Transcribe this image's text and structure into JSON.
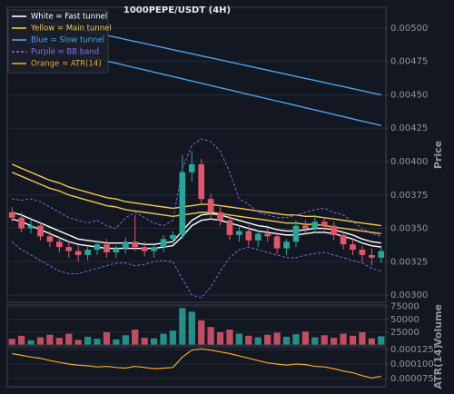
{
  "chart_data": [
    {
      "type": "candlestick",
      "title": "1000PEPE/USDT (4H)",
      "ylabel": "Price",
      "categories": [
        null,
        null,
        null,
        null,
        null,
        null,
        null,
        null,
        null,
        null,
        null,
        null,
        null,
        null,
        null,
        null,
        null,
        null,
        null,
        null,
        null,
        null,
        null,
        null,
        null,
        null,
        null,
        null,
        null,
        null,
        null,
        null,
        null,
        null,
        null,
        null,
        null,
        null,
        null,
        null
      ],
      "up_color": "#26a69a",
      "down_color": "#e0576b",
      "grid": true,
      "ylim": [
        0.002946,
        0.005156
      ],
      "yticks": [
        {
          "value": 0.003,
          "label": "0.00300"
        },
        {
          "value": 0.00325,
          "label": "0.00325"
        },
        {
          "value": 0.0035,
          "label": "0.00350"
        },
        {
          "value": 0.00375,
          "label": "0.00375"
        },
        {
          "value": 0.004,
          "label": "0.00400"
        },
        {
          "value": 0.00425,
          "label": "0.00425"
        },
        {
          "value": 0.0045,
          "label": "0.00450"
        },
        {
          "value": 0.00475,
          "label": "0.00475"
        },
        {
          "value": 0.005,
          "label": "0.00500"
        }
      ],
      "open": [
        0.00362,
        0.00358,
        0.0035,
        0.00352,
        0.00344,
        0.0034,
        0.00336,
        0.00333,
        0.0033,
        0.00334,
        0.00338,
        0.00332,
        0.00335,
        0.0034,
        0.00336,
        0.00333,
        0.00336,
        0.00342,
        0.00345,
        0.00392,
        0.00398,
        0.00372,
        0.00362,
        0.00356,
        0.00345,
        0.00348,
        0.00341,
        0.00346,
        0.00344,
        0.00335,
        0.0034,
        0.00352,
        0.0035,
        0.00355,
        0.00352,
        0.00345,
        0.00338,
        0.00334,
        0.0033,
        0.00328
      ],
      "high": [
        0.00366,
        0.00362,
        0.00356,
        0.00355,
        0.00348,
        0.00344,
        0.0034,
        0.00337,
        0.00336,
        0.00341,
        0.00342,
        0.00337,
        0.00343,
        0.0036,
        0.0034,
        0.00338,
        0.00345,
        0.00348,
        0.00405,
        0.00408,
        0.00402,
        0.00376,
        0.00366,
        0.0036,
        0.00352,
        0.00352,
        0.00348,
        0.0035,
        0.00347,
        0.00342,
        0.00356,
        0.00356,
        0.0036,
        0.00358,
        0.00355,
        0.00348,
        0.00342,
        0.00337,
        0.00335,
        0.00337
      ],
      "low": [
        0.00355,
        0.00347,
        0.00346,
        0.00341,
        0.00336,
        0.00332,
        0.00328,
        0.00325,
        0.00326,
        0.0033,
        0.00328,
        0.00328,
        0.00331,
        0.00333,
        0.00329,
        0.00328,
        0.00332,
        0.00338,
        0.00342,
        0.00385,
        0.00368,
        0.00358,
        0.00352,
        0.00341,
        0.0034,
        0.00337,
        0.00336,
        0.0034,
        0.00331,
        0.0033,
        0.00336,
        0.00346,
        0.00346,
        0.00348,
        0.00341,
        0.00334,
        0.0033,
        0.00325,
        0.00322,
        0.00324
      ],
      "close": [
        0.00358,
        0.0035,
        0.00352,
        0.00344,
        0.0034,
        0.00336,
        0.00333,
        0.0033,
        0.00334,
        0.00338,
        0.00332,
        0.00335,
        0.0034,
        0.00336,
        0.00333,
        0.00336,
        0.00342,
        0.00345,
        0.00392,
        0.00398,
        0.00372,
        0.00362,
        0.00356,
        0.00345,
        0.00348,
        0.00341,
        0.00346,
        0.00344,
        0.00335,
        0.0034,
        0.00352,
        0.0035,
        0.00355,
        0.00352,
        0.00345,
        0.00338,
        0.00334,
        0.0033,
        0.00328,
        0.00333
      ],
      "series": [
        {
          "name": "White = Fast tunnel",
          "color": "#ffffff",
          "dashed": false,
          "values": [
            0.00362,
            0.0036,
            0.00357,
            0.00354,
            0.00351,
            0.00348,
            0.00345,
            0.00342,
            0.00341,
            0.0034,
            0.00339,
            0.00339,
            0.00339,
            0.00339,
            0.00338,
            0.00338,
            0.00339,
            0.0034,
            0.00348,
            0.00356,
            0.0036,
            0.00361,
            0.0036,
            0.00358,
            0.00356,
            0.00354,
            0.00352,
            0.00351,
            0.00349,
            0.00348,
            0.00348,
            0.00349,
            0.0035,
            0.0035,
            0.00349,
            0.00347,
            0.00345,
            0.00342,
            0.0034,
            0.00339
          ],
          "values_lower": [
            0.00357,
            0.00355,
            0.00352,
            0.00349,
            0.00346,
            0.00343,
            0.0034,
            0.00338,
            0.00337,
            0.00336,
            0.00335,
            0.00335,
            0.00335,
            0.00335,
            0.00335,
            0.00335,
            0.00336,
            0.00337,
            0.00344,
            0.00352,
            0.00356,
            0.00357,
            0.00356,
            0.00354,
            0.00352,
            0.0035,
            0.00348,
            0.00347,
            0.00346,
            0.00345,
            0.00345,
            0.00346,
            0.00347,
            0.00347,
            0.00346,
            0.00344,
            0.00342,
            0.00339,
            0.00337,
            0.00336
          ]
        },
        {
          "name": "Yellow = Main tunnel",
          "color": "#f2c94c",
          "dashed": false,
          "values": [
            0.00398,
            0.00395,
            0.00392,
            0.00389,
            0.00386,
            0.00384,
            0.00381,
            0.00379,
            0.00377,
            0.00375,
            0.00373,
            0.00372,
            0.0037,
            0.00369,
            0.00368,
            0.00367,
            0.00366,
            0.00365,
            0.00366,
            0.00367,
            0.00368,
            0.00368,
            0.00367,
            0.00366,
            0.00365,
            0.00364,
            0.00363,
            0.00362,
            0.00361,
            0.0036,
            0.0036,
            0.00359,
            0.00359,
            0.00358,
            0.00357,
            0.00356,
            0.00355,
            0.00354,
            0.00353,
            0.00352
          ],
          "values_lower": [
            0.00392,
            0.00389,
            0.00386,
            0.00383,
            0.0038,
            0.00378,
            0.00375,
            0.00373,
            0.00371,
            0.00369,
            0.00367,
            0.00366,
            0.00364,
            0.00363,
            0.00362,
            0.00361,
            0.0036,
            0.00359,
            0.0036,
            0.00361,
            0.00362,
            0.00362,
            0.00361,
            0.0036,
            0.00359,
            0.00358,
            0.00357,
            0.00356,
            0.00355,
            0.00354,
            0.00354,
            0.00353,
            0.00353,
            0.00352,
            0.00351,
            0.0035,
            0.00349,
            0.00348,
            0.00347,
            0.00346
          ]
        },
        {
          "name": "Blue = Slow tunnel",
          "color": "#4da3e8",
          "dashed": false,
          "values": [
            0.0051,
            0.005085,
            0.00507,
            0.005054,
            0.005038,
            0.005023,
            0.005008,
            0.004992,
            0.004977,
            0.004962,
            0.004946,
            0.004931,
            0.004915,
            0.0049,
            0.004885,
            0.004869,
            0.004854,
            0.004838,
            0.004823,
            0.004808,
            0.004792,
            0.004777,
            0.004762,
            0.004746,
            0.004731,
            0.004715,
            0.0047,
            0.004685,
            0.004669,
            0.004654,
            0.004638,
            0.004623,
            0.004608,
            0.004592,
            0.004577,
            0.004562,
            0.004546,
            0.004531,
            0.004515,
            0.0045
          ],
          "values_lower": [
            0.00492,
            0.004903,
            0.004887,
            0.00487,
            0.004853,
            0.004837,
            0.00482,
            0.004803,
            0.004787,
            0.00477,
            0.004753,
            0.004737,
            0.00472,
            0.004703,
            0.004687,
            0.00467,
            0.004653,
            0.004637,
            0.00462,
            0.004603,
            0.004587,
            0.00457,
            0.004553,
            0.004537,
            0.00452,
            0.004503,
            0.004487,
            0.00447,
            0.004453,
            0.004437,
            0.00442,
            0.004403,
            0.004387,
            0.00437,
            0.004353,
            0.004337,
            0.00432,
            0.004303,
            0.004287,
            0.00427
          ]
        },
        {
          "name": "Purple = BB band",
          "color": "#8e6bf0",
          "dashed": true,
          "values": [
            0.00372,
            0.00371,
            0.00372,
            0.0037,
            0.00366,
            0.00362,
            0.00358,
            0.00356,
            0.00354,
            0.00356,
            0.00352,
            0.0035,
            0.00358,
            0.00362,
            0.00358,
            0.00354,
            0.00352,
            0.00356,
            0.00395,
            0.00412,
            0.00417,
            0.00415,
            0.00408,
            0.00392,
            0.00372,
            0.00368,
            0.00362,
            0.0036,
            0.00358,
            0.00358,
            0.0036,
            0.00362,
            0.00364,
            0.00365,
            0.00362,
            0.0036,
            0.00355,
            0.0035,
            0.00346,
            0.00344
          ],
          "values_lower": [
            0.0034,
            0.00334,
            0.0033,
            0.00326,
            0.00322,
            0.00318,
            0.00316,
            0.00316,
            0.00318,
            0.0032,
            0.00322,
            0.00324,
            0.00324,
            0.00322,
            0.00323,
            0.00325,
            0.00326,
            0.00325,
            0.00312,
            0.003,
            0.00298,
            0.00306,
            0.00318,
            0.00328,
            0.00334,
            0.00336,
            0.00334,
            0.00332,
            0.0033,
            0.00328,
            0.00328,
            0.0033,
            0.00331,
            0.00332,
            0.0033,
            0.00328,
            0.00326,
            0.00324,
            0.0032,
            0.00318
          ]
        }
      ]
    },
    {
      "type": "bar",
      "ylabel": "Volume",
      "grid": true,
      "ylim": [
        0,
        78000
      ],
      "yticks": [
        25000,
        50000,
        75000
      ],
      "values": [
        12000,
        18000,
        9000,
        15000,
        20000,
        14000,
        22000,
        10000,
        16000,
        12000,
        25000,
        11000,
        19000,
        30000,
        14000,
        13000,
        22000,
        28000,
        72000,
        65000,
        48000,
        35000,
        25000,
        30000,
        22000,
        18000,
        15000,
        20000,
        24000,
        16000,
        21000,
        26000,
        15000,
        19000,
        14000,
        22000,
        18000,
        25000,
        13000,
        17000
      ]
    },
    {
      "type": "line",
      "ylabel": "ATR(14)",
      "grid": true,
      "ylim": [
        6.09e-05,
        0.0001297
      ],
      "yticks": [
        {
          "value": 7.5e-05,
          "label": "0.000075"
        },
        {
          "value": 0.0001,
          "label": "0.000100"
        },
        {
          "value": 0.000125,
          "label": "0.000125"
        }
      ],
      "series": [
        {
          "name": "Orange = ATR(14)",
          "color": "#f5a623",
          "values": [
            0.000118,
            0.000115,
            0.000112,
            0.00011,
            0.000106,
            0.000103,
            0.0001,
            9.8e-05,
            9.7e-05,
            9.5e-05,
            9.6e-05,
            9.4e-05,
            9.3e-05,
            9.6e-05,
            9.4e-05,
            9.2e-05,
            9.3e-05,
            9.4e-05,
            0.000112,
            0.000124,
            0.000126,
            0.000124,
            0.000121,
            0.000118,
            0.000114,
            0.00011,
            0.000106,
            0.000102,
            0.0001,
            9.8e-05,
            0.0001,
            9.9e-05,
            9.6e-05,
            9.5e-05,
            9.2e-05,
            8.8e-05,
            8.5e-05,
            8e-05,
            7.6e-05,
            7.9e-05
          ]
        }
      ]
    }
  ]
}
